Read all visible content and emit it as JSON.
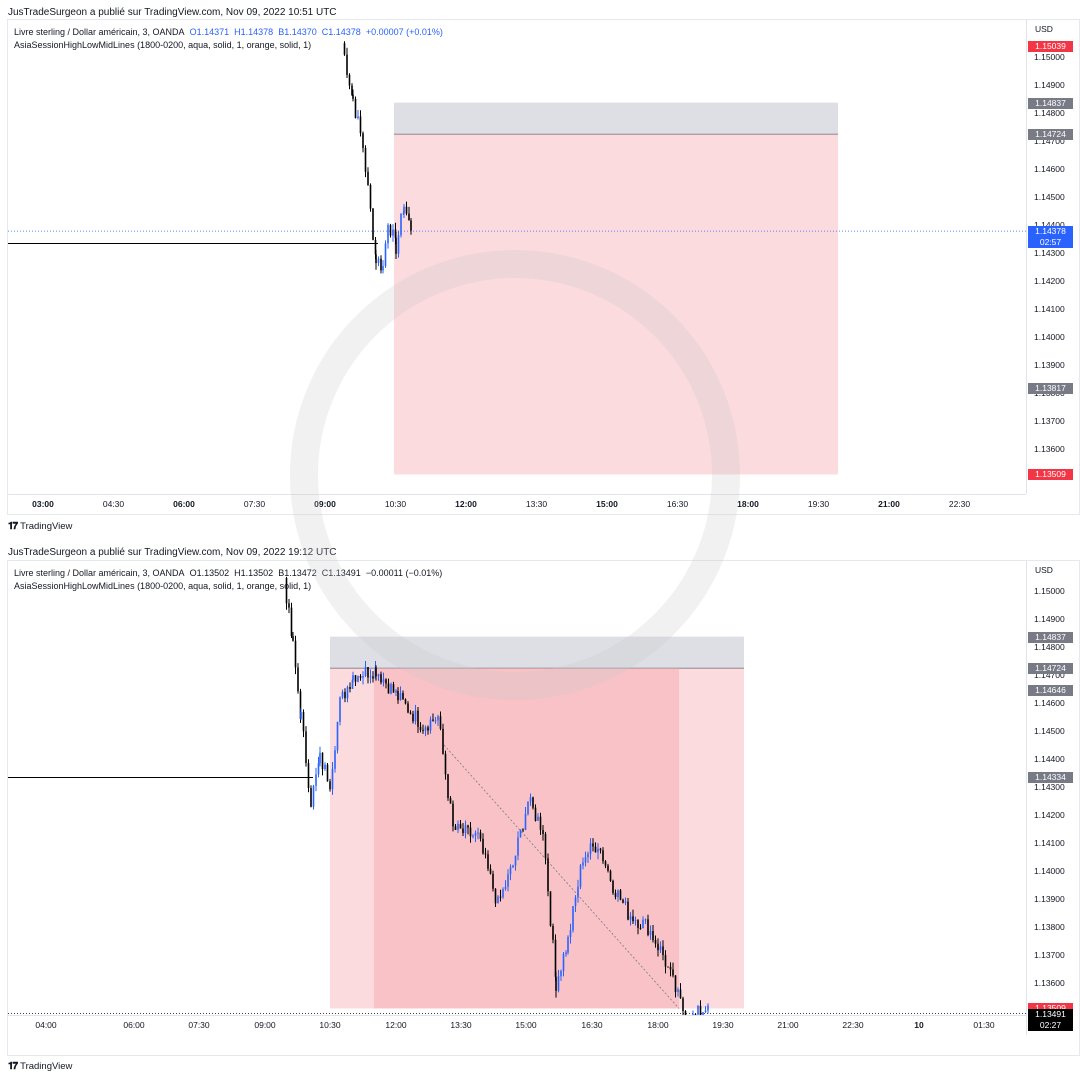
{
  "top": {
    "publisher": "JusTradeSurgeon a publié sur TradingView.com, Nov 09, 2022 10:51 UTC",
    "symbol_title": "Livre sterling / Dollar américain, 3, OANDA",
    "ohlc": {
      "o": "O1.14371",
      "h": "H1.14378",
      "l": "B1.14370",
      "c": "C1.14378",
      "change": "+0.00007 (+0.01%)"
    },
    "indicator": "AsiaSessionHighLowMidLines (1800-0200, aqua, solid, 1, orange, solid, 1)",
    "currency": "USD",
    "price_ticks": [
      "1.15000",
      "1.14900",
      "1.14800",
      "1.14700",
      "1.14600",
      "1.14500",
      "1.14400",
      "1.14300",
      "1.14200",
      "1.14100",
      "1.14000",
      "1.13900",
      "1.13800",
      "1.13700",
      "1.13600"
    ],
    "price_labels": [
      {
        "text": "1.15039",
        "color": "#f23645"
      },
      {
        "text": "1.14837",
        "color": "#787b86"
      },
      {
        "text": "1.14724",
        "color": "#787b86"
      },
      {
        "text": "1.14378",
        "sub": "02:57",
        "color": "#2962ff"
      },
      {
        "text": "1.13817",
        "color": "#787b86"
      },
      {
        "text": "1.13509",
        "color": "#f23645"
      }
    ],
    "time_ticks": [
      {
        "text": "03:00",
        "bold": true
      },
      {
        "text": "04:30"
      },
      {
        "text": "06:00",
        "bold": true
      },
      {
        "text": "07:30"
      },
      {
        "text": "09:00",
        "bold": true
      },
      {
        "text": "10:30"
      },
      {
        "text": "12:00",
        "bold": true
      },
      {
        "text": "13:30"
      },
      {
        "text": "15:00",
        "bold": true
      },
      {
        "text": "16:30"
      },
      {
        "text": "18:00",
        "bold": true
      },
      {
        "text": "19:30"
      },
      {
        "text": "21:00",
        "bold": true
      },
      {
        "text": "22:30"
      }
    ],
    "footer": "TradingView"
  },
  "bottom": {
    "publisher": "JusTradeSurgeon a publié sur TradingView.com, Nov 09, 2022 19:12 UTC",
    "symbol_title": "Livre sterling / Dollar américain, 3, OANDA",
    "ohlc": {
      "o": "O1.13502",
      "h": "H1.13502",
      "l": "B1.13472",
      "c": "C1.13491",
      "change": "−0.00011 (−0.01%)"
    },
    "indicator": "AsiaSessionHighLowMidLines (1800-0200, aqua, solid, 1, orange, solid, 1)",
    "currency": "USD",
    "price_ticks": [
      "1.15000",
      "1.14900",
      "1.14800",
      "1.14700",
      "1.14600",
      "1.14500",
      "1.14400",
      "1.14300",
      "1.14200",
      "1.14100",
      "1.14000",
      "1.13900",
      "1.13800",
      "1.13700",
      "1.13600"
    ],
    "price_labels": [
      {
        "text": "1.14837",
        "color": "#787b86"
      },
      {
        "text": "1.14724",
        "color": "#787b86"
      },
      {
        "text": "1.14646",
        "color": "#787b86"
      },
      {
        "text": "1.14334",
        "color": "#787b86"
      },
      {
        "text": "1.13509",
        "color": "#f23645"
      },
      {
        "text": "1.13491",
        "sub": "02:27",
        "color": "#000000"
      }
    ],
    "time_ticks": [
      {
        "text": "04:00"
      },
      {
        "text": "06:00"
      },
      {
        "text": "07:30"
      },
      {
        "text": "09:00"
      },
      {
        "text": "10:30"
      },
      {
        "text": "12:00"
      },
      {
        "text": "13:30"
      },
      {
        "text": "15:00"
      },
      {
        "text": "16:30"
      },
      {
        "text": "18:00"
      },
      {
        "text": "19:30"
      },
      {
        "text": "21:00"
      },
      {
        "text": "22:30"
      },
      {
        "text": "10",
        "bold": true
      },
      {
        "text": "01:30"
      }
    ],
    "footer": "TradingView"
  },
  "colors": {
    "up": "#2962ff",
    "down": "#000000",
    "loss_zone": "#f7b0b5",
    "stop_zone": "#d1d4dc",
    "last_price": "#2962ff"
  }
}
